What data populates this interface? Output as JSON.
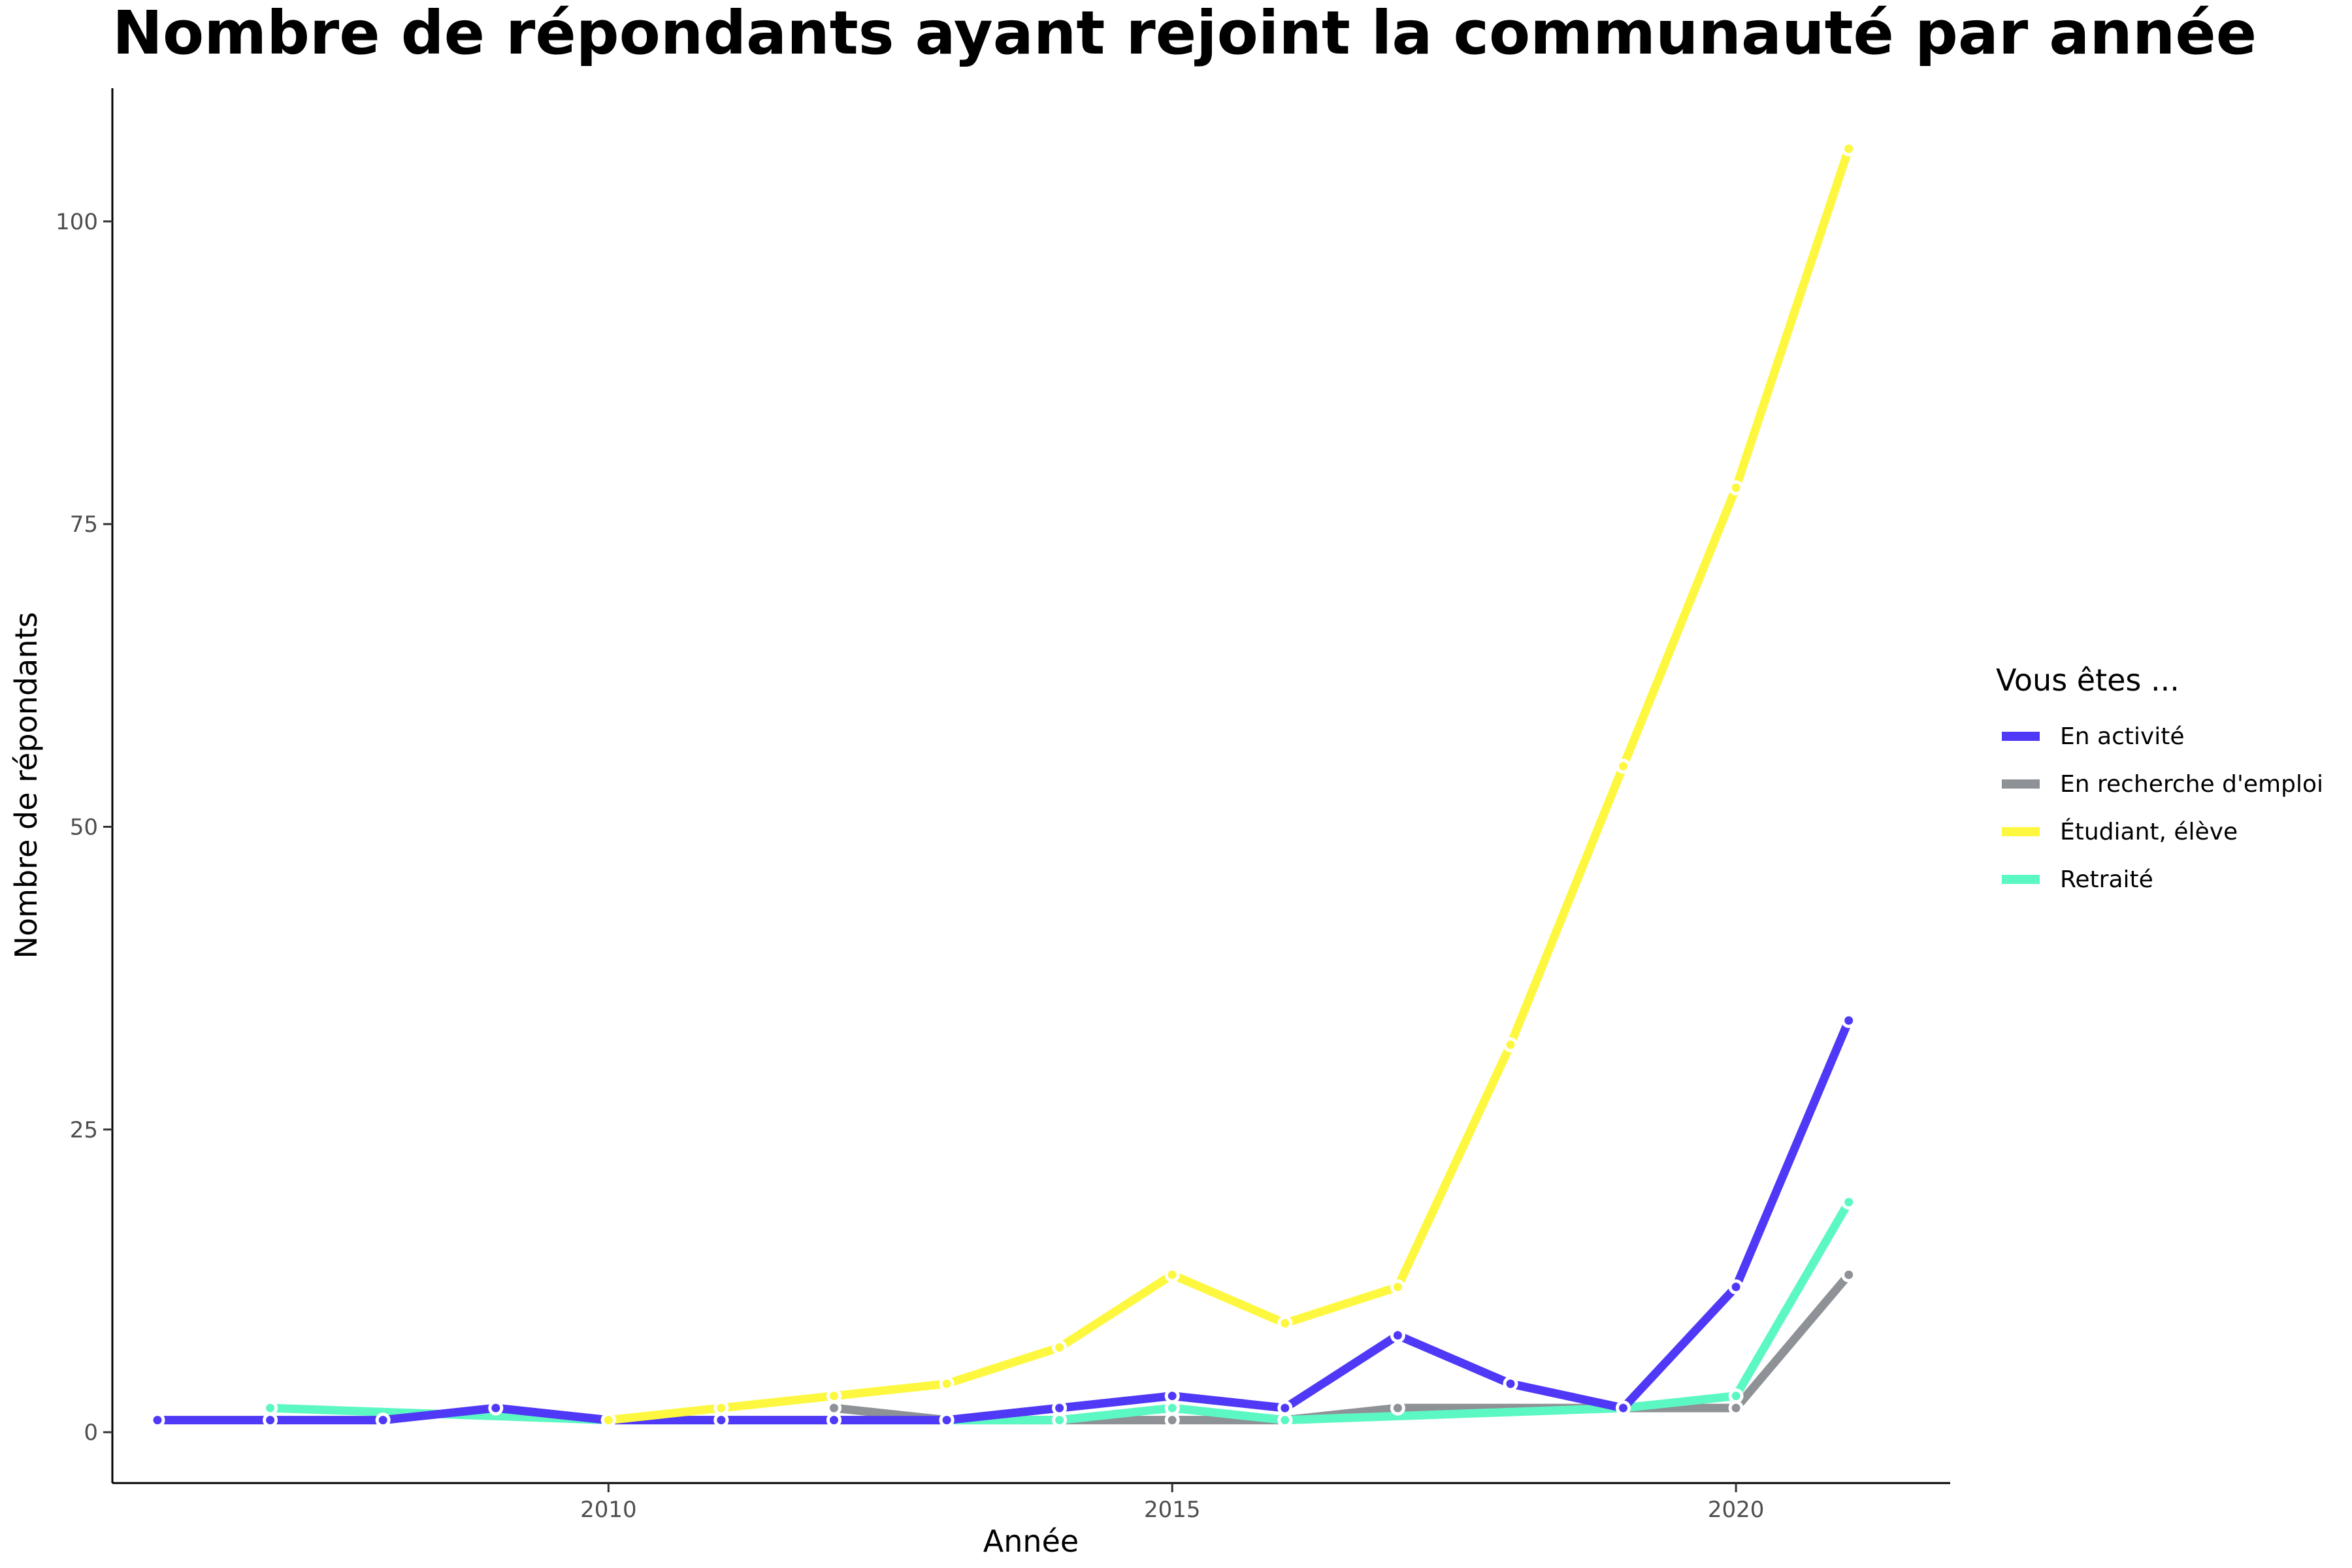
{
  "chart_data": {
    "type": "line",
    "title": "Nombre de répondants ayant rejoint la communauté par année",
    "xlabel": "Année",
    "ylabel": "Nombre de répondants",
    "xlim": [
      2005.6,
      2021.9
    ],
    "ylim": [
      -4.2,
      111
    ],
    "xticks": [
      2010,
      2015,
      2020
    ],
    "yticks": [
      0,
      25,
      50,
      75,
      100
    ],
    "grid": false,
    "legend": {
      "title": "Vous êtes ...",
      "position": "right"
    },
    "series": [
      {
        "name": "En activité",
        "color": "#4f39f6",
        "points": [
          [
            2006,
            1
          ],
          [
            2007,
            1
          ],
          [
            2008,
            1
          ],
          [
            2009,
            2
          ],
          [
            2010,
            1
          ],
          [
            2011,
            1
          ],
          [
            2012,
            1
          ],
          [
            2013,
            1
          ],
          [
            2014,
            2
          ],
          [
            2015,
            3
          ],
          [
            2016,
            2
          ],
          [
            2017,
            8
          ],
          [
            2018,
            4
          ],
          [
            2019,
            2
          ],
          [
            2020,
            12
          ],
          [
            2021,
            34
          ]
        ]
      },
      {
        "name": "En recherche d'emploi",
        "color": "#8e9196",
        "points": [
          [
            2012,
            2
          ],
          [
            2013,
            1
          ],
          [
            2015,
            1
          ],
          [
            2016,
            1
          ],
          [
            2017,
            2
          ],
          [
            2020,
            2
          ],
          [
            2021,
            13
          ]
        ]
      },
      {
        "name": "Étudiant, élève",
        "color": "#fdf83f",
        "points": [
          [
            2010,
            1
          ],
          [
            2011,
            2
          ],
          [
            2012,
            3
          ],
          [
            2013,
            4
          ],
          [
            2014,
            7
          ],
          [
            2015,
            13
          ],
          [
            2016,
            9
          ],
          [
            2017,
            12
          ],
          [
            2018,
            32
          ],
          [
            2019,
            55
          ],
          [
            2020,
            78
          ],
          [
            2021,
            106
          ]
        ]
      },
      {
        "name": "Retraité",
        "color": "#5cf8c4",
        "points": [
          [
            2007,
            2
          ],
          [
            2010,
            1
          ],
          [
            2011,
            1
          ],
          [
            2012,
            1
          ],
          [
            2013,
            1
          ],
          [
            2014,
            1
          ],
          [
            2015,
            2
          ],
          [
            2016,
            1
          ],
          [
            2019,
            2
          ],
          [
            2020,
            3
          ],
          [
            2021,
            19
          ]
        ]
      }
    ]
  }
}
